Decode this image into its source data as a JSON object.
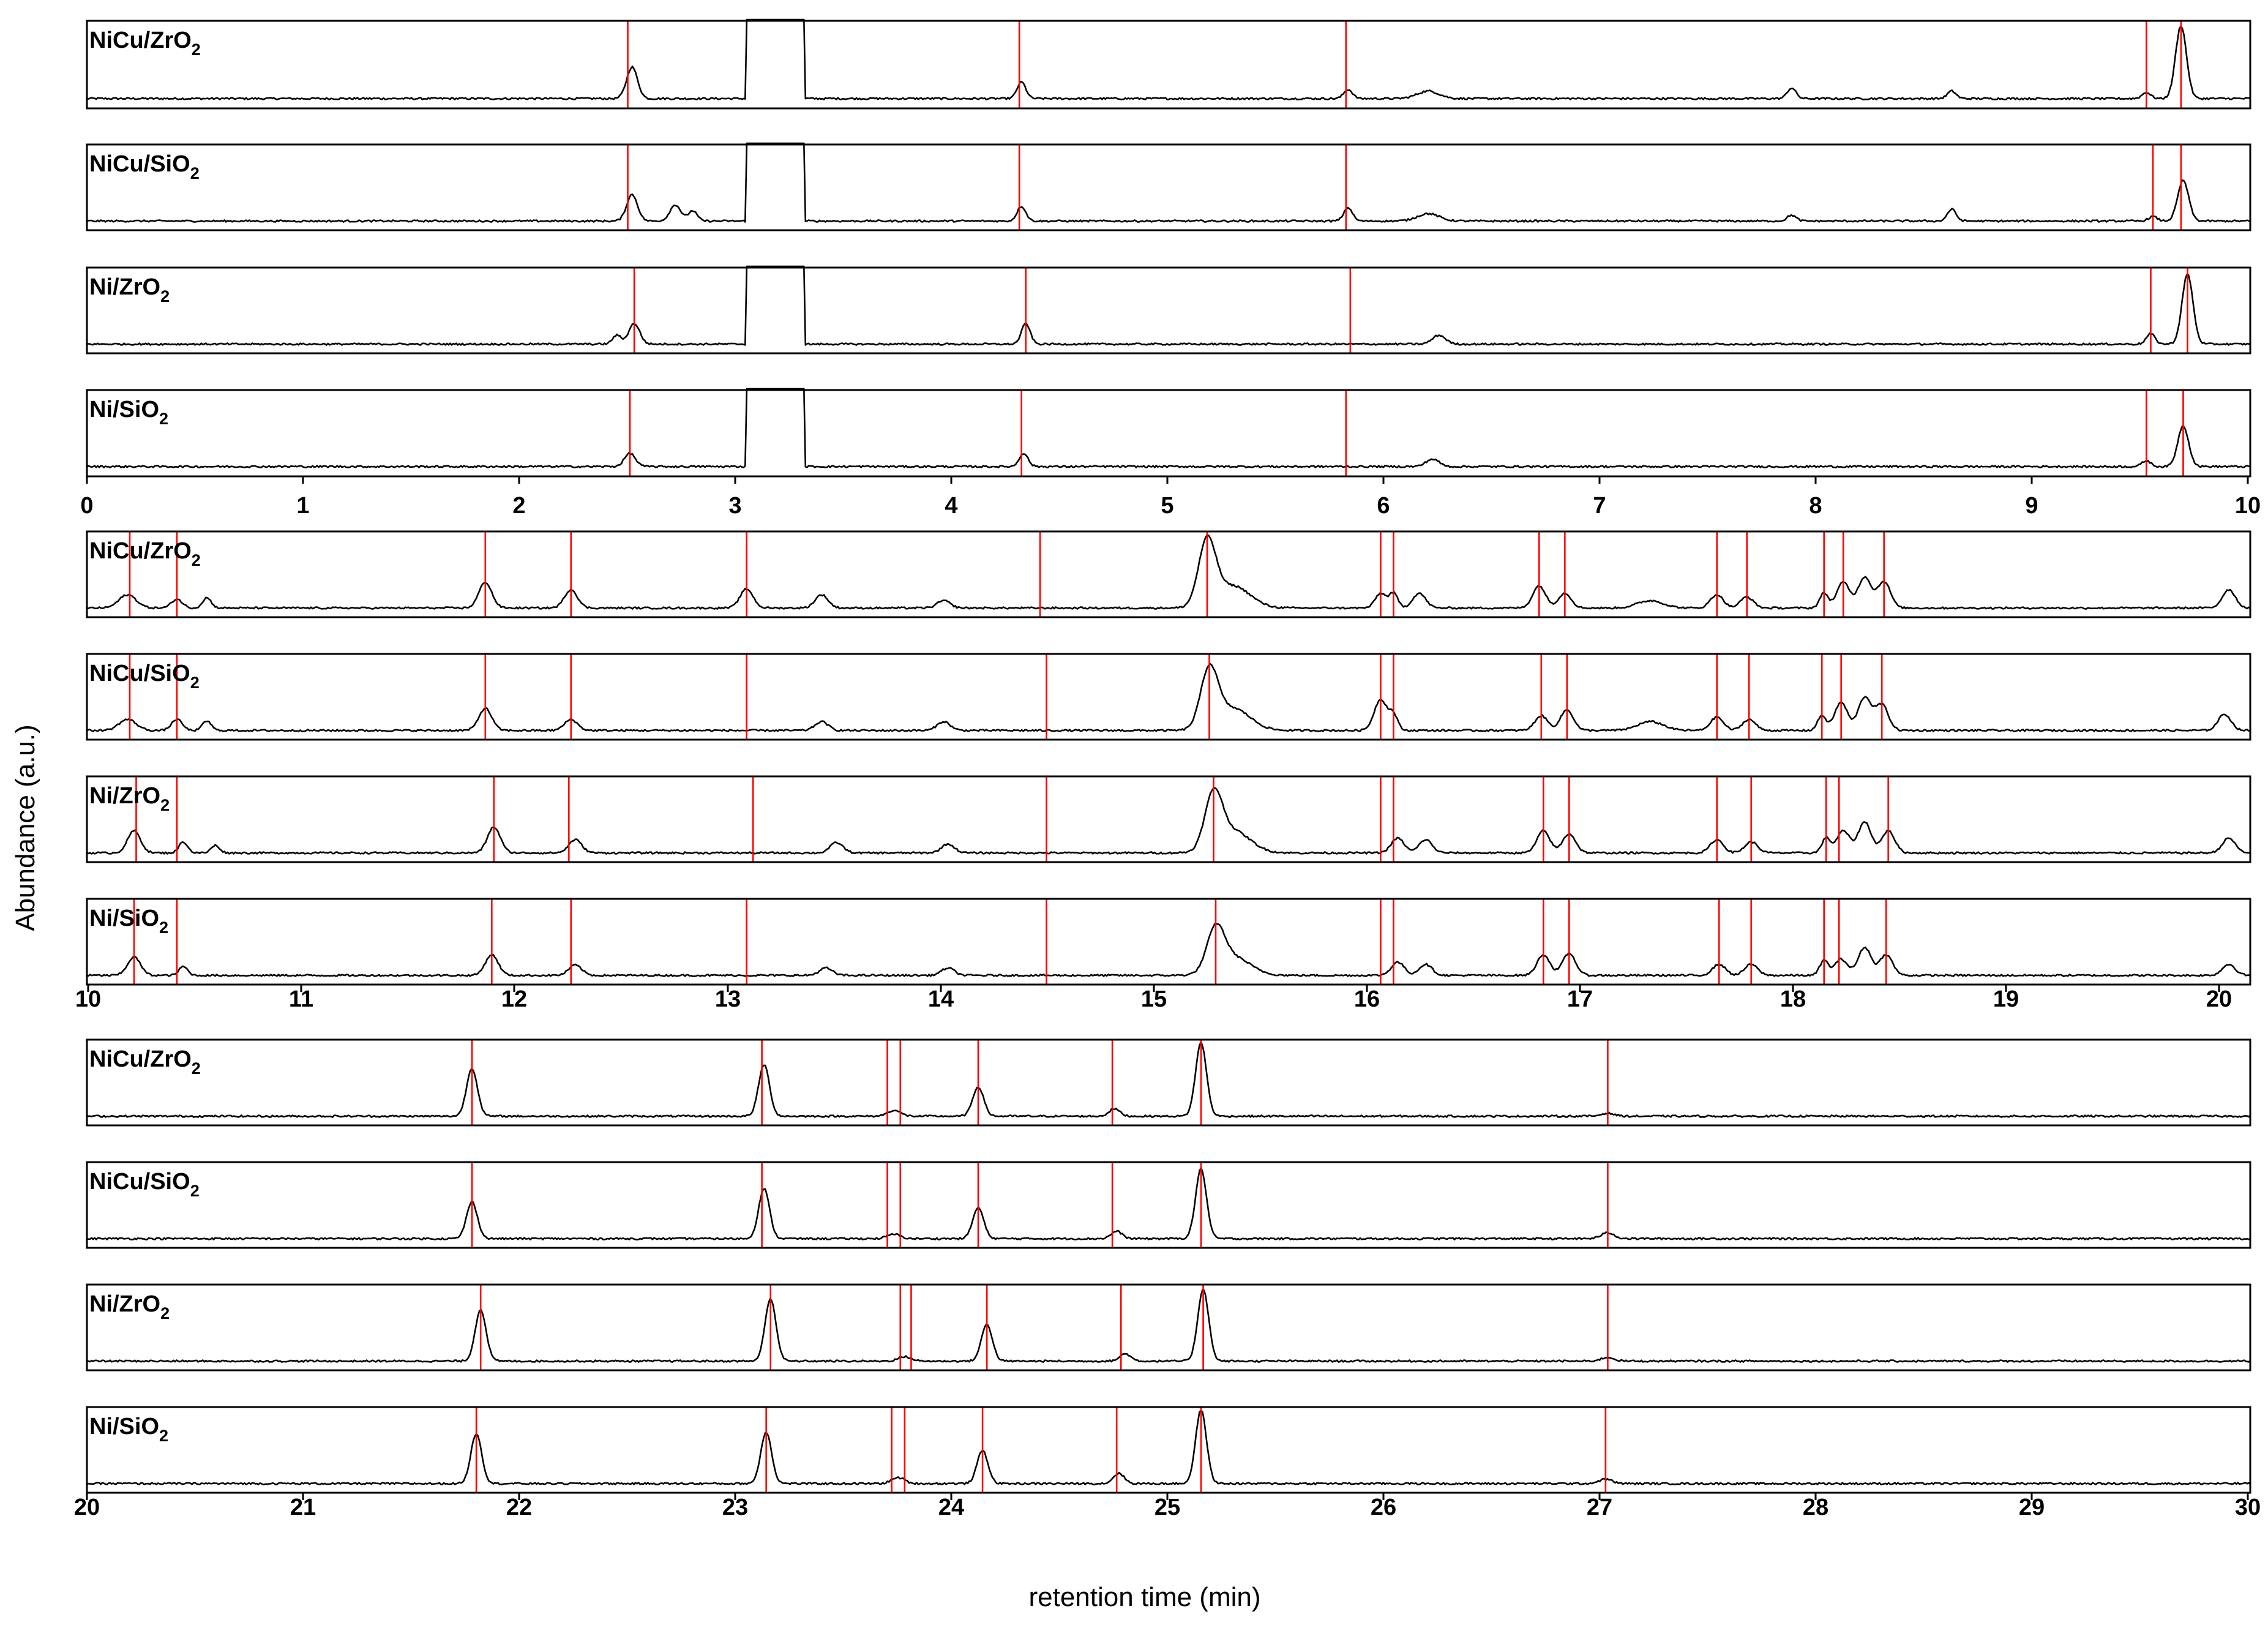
{
  "chart_data": {
    "type": "line",
    "xlabel": "retention time (min)",
    "ylabel": "Abundance (a.u.)",
    "colors": {
      "trace": "#000000",
      "marker": "#ff0000"
    },
    "catalysts": [
      {
        "key": "NiCu_ZrO2",
        "base": "NiCu/ZrO",
        "sub": "2"
      },
      {
        "key": "NiCu_SiO2",
        "base": "NiCu/SiO",
        "sub": "2"
      },
      {
        "key": "Ni_ZrO2",
        "base": "Ni/ZrO",
        "sub": "2"
      },
      {
        "key": "Ni_SiO2",
        "base": "Ni/SiO",
        "sub": "2"
      }
    ],
    "segments": [
      {
        "xlim": [
          0,
          10
        ],
        "ticks": [
          "0",
          "1",
          "2",
          "3",
          "4",
          "5",
          "6",
          "7",
          "8",
          "9",
          "10"
        ],
        "solvent_window": {
          "start": 3.05,
          "end": 3.32
        },
        "panels": [
          {
            "catalyst": "NiCu_ZrO2",
            "markers": [
              2.5,
              4.31,
              5.82,
              9.52,
              9.68
            ],
            "peaks": [
              [
                2.52,
                0.42,
                0.025
              ],
              [
                4.32,
                0.22,
                0.02
              ],
              [
                5.83,
                0.12,
                0.02
              ],
              [
                6.2,
                0.1,
                0.05
              ],
              [
                7.88,
                0.14,
                0.02
              ],
              [
                8.62,
                0.1,
                0.02
              ],
              [
                9.52,
                0.08,
                0.02
              ],
              [
                9.68,
                0.97,
                0.025
              ]
            ]
          },
          {
            "catalyst": "NiCu_SiO2",
            "markers": [
              2.5,
              4.31,
              5.82,
              9.55,
              9.68
            ],
            "peaks": [
              [
                2.52,
                0.36,
                0.025
              ],
              [
                2.72,
                0.22,
                0.025
              ],
              [
                2.8,
                0.14,
                0.02
              ],
              [
                4.32,
                0.2,
                0.02
              ],
              [
                5.83,
                0.18,
                0.02
              ],
              [
                6.2,
                0.1,
                0.05
              ],
              [
                7.88,
                0.08,
                0.02
              ],
              [
                8.62,
                0.16,
                0.02
              ],
              [
                9.55,
                0.06,
                0.02
              ],
              [
                9.69,
                0.55,
                0.025
              ]
            ]
          },
          {
            "catalyst": "Ni_ZrO2",
            "markers": [
              2.53,
              4.34,
              5.84,
              9.54,
              9.71
            ],
            "peaks": [
              [
                2.53,
                0.28,
                0.025
              ],
              [
                2.45,
                0.12,
                0.02
              ],
              [
                4.34,
                0.28,
                0.02
              ],
              [
                6.25,
                0.12,
                0.03
              ],
              [
                9.54,
                0.14,
                0.02
              ],
              [
                9.71,
                0.95,
                0.025
              ]
            ]
          },
          {
            "catalyst": "Ni_SiO2",
            "markers": [
              2.51,
              4.32,
              5.82,
              9.52,
              9.69
            ],
            "peaks": [
              [
                2.51,
                0.18,
                0.025
              ],
              [
                4.33,
                0.18,
                0.02
              ],
              [
                6.22,
                0.1,
                0.03
              ],
              [
                9.52,
                0.08,
                0.02
              ],
              [
                9.69,
                0.55,
                0.025
              ]
            ]
          }
        ]
      },
      {
        "xlim": [
          10,
          20.1
        ],
        "ticks": [
          "10",
          "11",
          "12",
          "13",
          "14",
          "15",
          "16",
          "17",
          "18",
          "19",
          "20"
        ],
        "solvent_window": null,
        "panels": [
          {
            "catalyst": "NiCu_ZrO2",
            "markers": [
              10.2,
              10.42,
              11.86,
              12.26,
              13.08,
              14.45,
              15.23,
              16.04,
              16.1,
              16.78,
              16.9,
              17.61,
              17.75,
              18.11,
              18.2,
              18.39
            ],
            "peaks": [
              [
                10.19,
                0.18,
                0.04
              ],
              [
                10.42,
                0.12,
                0.025
              ],
              [
                10.56,
                0.14,
                0.02
              ],
              [
                11.86,
                0.35,
                0.03
              ],
              [
                12.26,
                0.25,
                0.03
              ],
              [
                13.08,
                0.26,
                0.03
              ],
              [
                13.43,
                0.18,
                0.03
              ],
              [
                14.0,
                0.1,
                0.03
              ],
              [
                15.23,
                0.88,
                0.04
              ],
              [
                15.35,
                0.3,
                0.08
              ],
              [
                16.04,
                0.2,
                0.025
              ],
              [
                16.1,
                0.2,
                0.02
              ],
              [
                16.22,
                0.2,
                0.03
              ],
              [
                16.78,
                0.3,
                0.03
              ],
              [
                16.9,
                0.2,
                0.03
              ],
              [
                17.3,
                0.1,
                0.06
              ],
              [
                17.61,
                0.18,
                0.03
              ],
              [
                17.75,
                0.15,
                0.03
              ],
              [
                18.11,
                0.2,
                0.02
              ],
              [
                18.2,
                0.35,
                0.03
              ],
              [
                18.3,
                0.42,
                0.03
              ],
              [
                18.39,
                0.36,
                0.03
              ],
              [
                20.0,
                0.25,
                0.03
              ]
            ]
          },
          {
            "catalyst": "NiCu_SiO2",
            "markers": [
              10.2,
              10.42,
              11.86,
              12.26,
              13.08,
              14.48,
              15.24,
              16.04,
              16.1,
              16.79,
              16.91,
              17.61,
              17.76,
              18.1,
              18.19,
              18.38
            ],
            "peaks": [
              [
                10.19,
                0.15,
                0.04
              ],
              [
                10.42,
                0.15,
                0.025
              ],
              [
                10.56,
                0.13,
                0.02
              ],
              [
                11.86,
                0.3,
                0.03
              ],
              [
                12.26,
                0.15,
                0.03
              ],
              [
                13.43,
                0.12,
                0.03
              ],
              [
                14.0,
                0.12,
                0.03
              ],
              [
                15.24,
                0.78,
                0.04
              ],
              [
                15.35,
                0.3,
                0.08
              ],
              [
                16.04,
                0.42,
                0.03
              ],
              [
                16.1,
                0.2,
                0.02
              ],
              [
                16.79,
                0.2,
                0.03
              ],
              [
                16.91,
                0.28,
                0.03
              ],
              [
                17.3,
                0.12,
                0.06
              ],
              [
                17.61,
                0.18,
                0.03
              ],
              [
                17.76,
                0.15,
                0.03
              ],
              [
                18.1,
                0.2,
                0.02
              ],
              [
                18.19,
                0.38,
                0.03
              ],
              [
                18.3,
                0.45,
                0.03
              ],
              [
                18.38,
                0.35,
                0.03
              ],
              [
                19.98,
                0.22,
                0.03
              ]
            ]
          },
          {
            "catalyst": "Ni_ZrO2",
            "markers": [
              10.23,
              10.42,
              11.9,
              12.25,
              13.11,
              14.48,
              15.26,
              16.04,
              16.1,
              16.8,
              16.92,
              17.61,
              17.77,
              18.12,
              18.18,
              18.41
            ],
            "peaks": [
              [
                10.22,
                0.3,
                0.03
              ],
              [
                10.45,
                0.15,
                0.02
              ],
              [
                10.6,
                0.1,
                0.02
              ],
              [
                11.9,
                0.35,
                0.03
              ],
              [
                12.28,
                0.18,
                0.03
              ],
              [
                13.5,
                0.14,
                0.03
              ],
              [
                14.02,
                0.12,
                0.03
              ],
              [
                15.26,
                0.72,
                0.04
              ],
              [
                15.35,
                0.3,
                0.08
              ],
              [
                16.12,
                0.2,
                0.03
              ],
              [
                16.25,
                0.18,
                0.03
              ],
              [
                16.8,
                0.3,
                0.03
              ],
              [
                16.92,
                0.26,
                0.03
              ],
              [
                17.61,
                0.18,
                0.03
              ],
              [
                17.77,
                0.15,
                0.03
              ],
              [
                18.12,
                0.2,
                0.02
              ],
              [
                18.2,
                0.3,
                0.03
              ],
              [
                18.3,
                0.42,
                0.03
              ],
              [
                18.41,
                0.3,
                0.03
              ],
              [
                20.0,
                0.2,
                0.03
              ]
            ]
          },
          {
            "catalyst": "Ni_SiO2",
            "markers": [
              10.22,
              10.42,
              11.89,
              12.26,
              13.08,
              14.48,
              15.27,
              16.04,
              16.1,
              16.8,
              16.92,
              17.62,
              17.77,
              18.11,
              18.18,
              18.4
            ],
            "peaks": [
              [
                10.22,
                0.25,
                0.03
              ],
              [
                10.45,
                0.12,
                0.02
              ],
              [
                11.89,
                0.28,
                0.03
              ],
              [
                12.28,
                0.14,
                0.03
              ],
              [
                13.45,
                0.1,
                0.03
              ],
              [
                14.02,
                0.1,
                0.03
              ],
              [
                15.27,
                0.55,
                0.04
              ],
              [
                15.35,
                0.25,
                0.08
              ],
              [
                16.12,
                0.18,
                0.03
              ],
              [
                16.25,
                0.15,
                0.03
              ],
              [
                16.8,
                0.28,
                0.03
              ],
              [
                16.92,
                0.3,
                0.03
              ],
              [
                17.62,
                0.15,
                0.03
              ],
              [
                17.77,
                0.15,
                0.03
              ],
              [
                18.11,
                0.2,
                0.02
              ],
              [
                18.19,
                0.22,
                0.03
              ],
              [
                18.3,
                0.38,
                0.03
              ],
              [
                18.4,
                0.28,
                0.03
              ],
              [
                20.0,
                0.15,
                0.03
              ]
            ]
          }
        ]
      },
      {
        "xlim": [
          20,
          30
        ],
        "ticks": [
          "20",
          "21",
          "22",
          "23",
          "24",
          "25",
          "26",
          "27",
          "28",
          "29",
          "30"
        ],
        "solvent_window": null,
        "panels": [
          {
            "catalyst": "NiCu_ZrO2",
            "markers": [
              21.78,
              23.12,
              23.7,
              23.76,
              24.12,
              24.74,
              25.15,
              27.03
            ],
            "peaks": [
              [
                21.78,
                0.65,
                0.025
              ],
              [
                23.13,
                0.7,
                0.025
              ],
              [
                23.73,
                0.08,
                0.03
              ],
              [
                24.12,
                0.4,
                0.025
              ],
              [
                24.75,
                0.1,
                0.025
              ],
              [
                25.15,
                1.0,
                0.025
              ],
              [
                27.03,
                0.04,
                0.03
              ]
            ]
          },
          {
            "catalyst": "NiCu_SiO2",
            "markers": [
              21.78,
              23.12,
              23.7,
              23.76,
              24.12,
              24.74,
              25.15,
              27.03
            ],
            "peaks": [
              [
                21.78,
                0.5,
                0.025
              ],
              [
                23.13,
                0.68,
                0.025
              ],
              [
                23.73,
                0.06,
                0.03
              ],
              [
                24.12,
                0.42,
                0.025
              ],
              [
                24.76,
                0.1,
                0.025
              ],
              [
                25.15,
                0.95,
                0.025
              ],
              [
                27.03,
                0.08,
                0.03
              ]
            ]
          },
          {
            "catalyst": "Ni_ZrO2",
            "markers": [
              21.82,
              23.16,
              23.76,
              23.81,
              24.16,
              24.78,
              25.16,
              27.03
            ],
            "peaks": [
              [
                21.82,
                0.7,
                0.025
              ],
              [
                23.16,
                0.85,
                0.025
              ],
              [
                23.78,
                0.06,
                0.03
              ],
              [
                24.16,
                0.5,
                0.025
              ],
              [
                24.8,
                0.1,
                0.025
              ],
              [
                25.16,
                0.98,
                0.025
              ],
              [
                27.03,
                0.05,
                0.03
              ]
            ]
          },
          {
            "catalyst": "Ni_SiO2",
            "markers": [
              21.8,
              23.14,
              23.72,
              23.78,
              24.14,
              24.76,
              25.15,
              27.02
            ],
            "peaks": [
              [
                21.8,
                0.68,
                0.025
              ],
              [
                23.14,
                0.7,
                0.025
              ],
              [
                23.75,
                0.08,
                0.03
              ],
              [
                24.14,
                0.45,
                0.025
              ],
              [
                24.77,
                0.14,
                0.025
              ],
              [
                25.15,
                1.0,
                0.025
              ],
              [
                27.02,
                0.06,
                0.03
              ]
            ]
          }
        ]
      }
    ]
  }
}
